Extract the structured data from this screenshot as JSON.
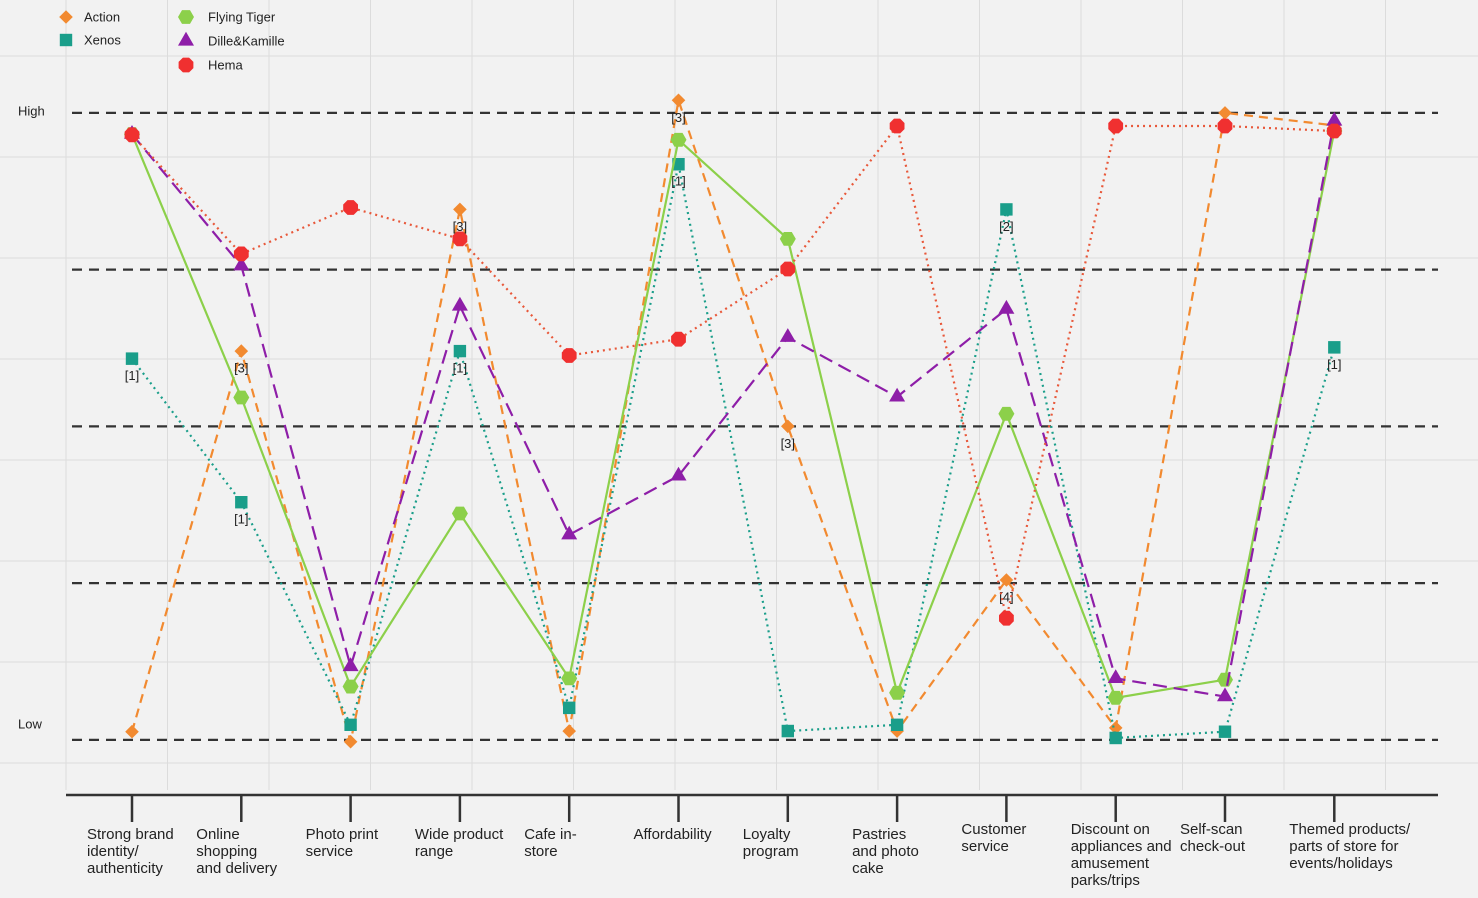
{
  "chart_data": {
    "type": "line",
    "categories": [
      "Strong brand\nidentity/\nauthenticity",
      "Online\nshopping\nand delivery",
      "Photo print\nservice",
      "Wide product\nrange",
      "Cafe in-\nstore",
      "Affordability",
      "Loyalty\nprogram",
      "Pastries\nand photo\ncake",
      "Customer\nservice",
      "Discount on\nappliances and\namusement\nparks/trips",
      "Self-scan\ncheck-out",
      "Themed products/\nparts of store for\nevents/holidays"
    ],
    "ylim": [
      -0.8,
      11.8
    ],
    "yticks": [
      {
        "value": 10,
        "label": "High"
      },
      {
        "value": 0,
        "label": "Low"
      }
    ],
    "reference_lines": [
      0,
      2.5,
      5,
      7.5,
      10
    ],
    "legend": "top-left",
    "series": [
      {
        "name": "Action",
        "color": "#f28a30",
        "marker": "diamond",
        "dash": "9,6",
        "values": [
          0.13,
          6.2,
          -0.03,
          8.46,
          0.14,
          10.2,
          5.0,
          0.14,
          2.55,
          0.19,
          10.0,
          9.8
        ],
        "annotations": [
          null,
          "[3]",
          null,
          "[3]",
          null,
          "[3]",
          "[3]",
          null,
          "[4]",
          null,
          null,
          null
        ]
      },
      {
        "name": "Xenos",
        "color": "#1a9e8a",
        "marker": "square",
        "dash": "2,4",
        "values": [
          6.08,
          3.79,
          0.24,
          6.2,
          0.51,
          9.18,
          0.14,
          0.24,
          8.46,
          0.03,
          0.13,
          6.26
        ],
        "annotations": [
          "[1]",
          "[1]",
          null,
          "[1]",
          null,
          "[1]",
          null,
          null,
          "[2]",
          null,
          null,
          "[1]"
        ]
      },
      {
        "name": "Flying Tiger",
        "color": "#8cd04a",
        "marker": "hexagon",
        "dash": "none",
        "values": [
          9.66,
          5.46,
          0.85,
          3.61,
          0.98,
          9.57,
          7.99,
          0.75,
          5.2,
          0.67,
          0.96,
          9.71
        ]
      },
      {
        "name": "Dille&Kamille",
        "color": "#8e1ea8",
        "marker": "triangle",
        "dash": "14,7",
        "values": [
          9.66,
          7.56,
          1.17,
          6.92,
          3.27,
          4.21,
          6.42,
          5.47,
          6.87,
          0.98,
          0.69,
          9.87
        ]
      },
      {
        "name": "Hema",
        "color": "#f03030",
        "line_color": "#e8583a",
        "marker": "octagon",
        "dash": "2,4",
        "values": [
          9.65,
          7.75,
          8.49,
          7.99,
          6.13,
          6.39,
          7.51,
          9.79,
          1.94,
          9.79,
          9.79,
          9.71
        ]
      }
    ]
  }
}
